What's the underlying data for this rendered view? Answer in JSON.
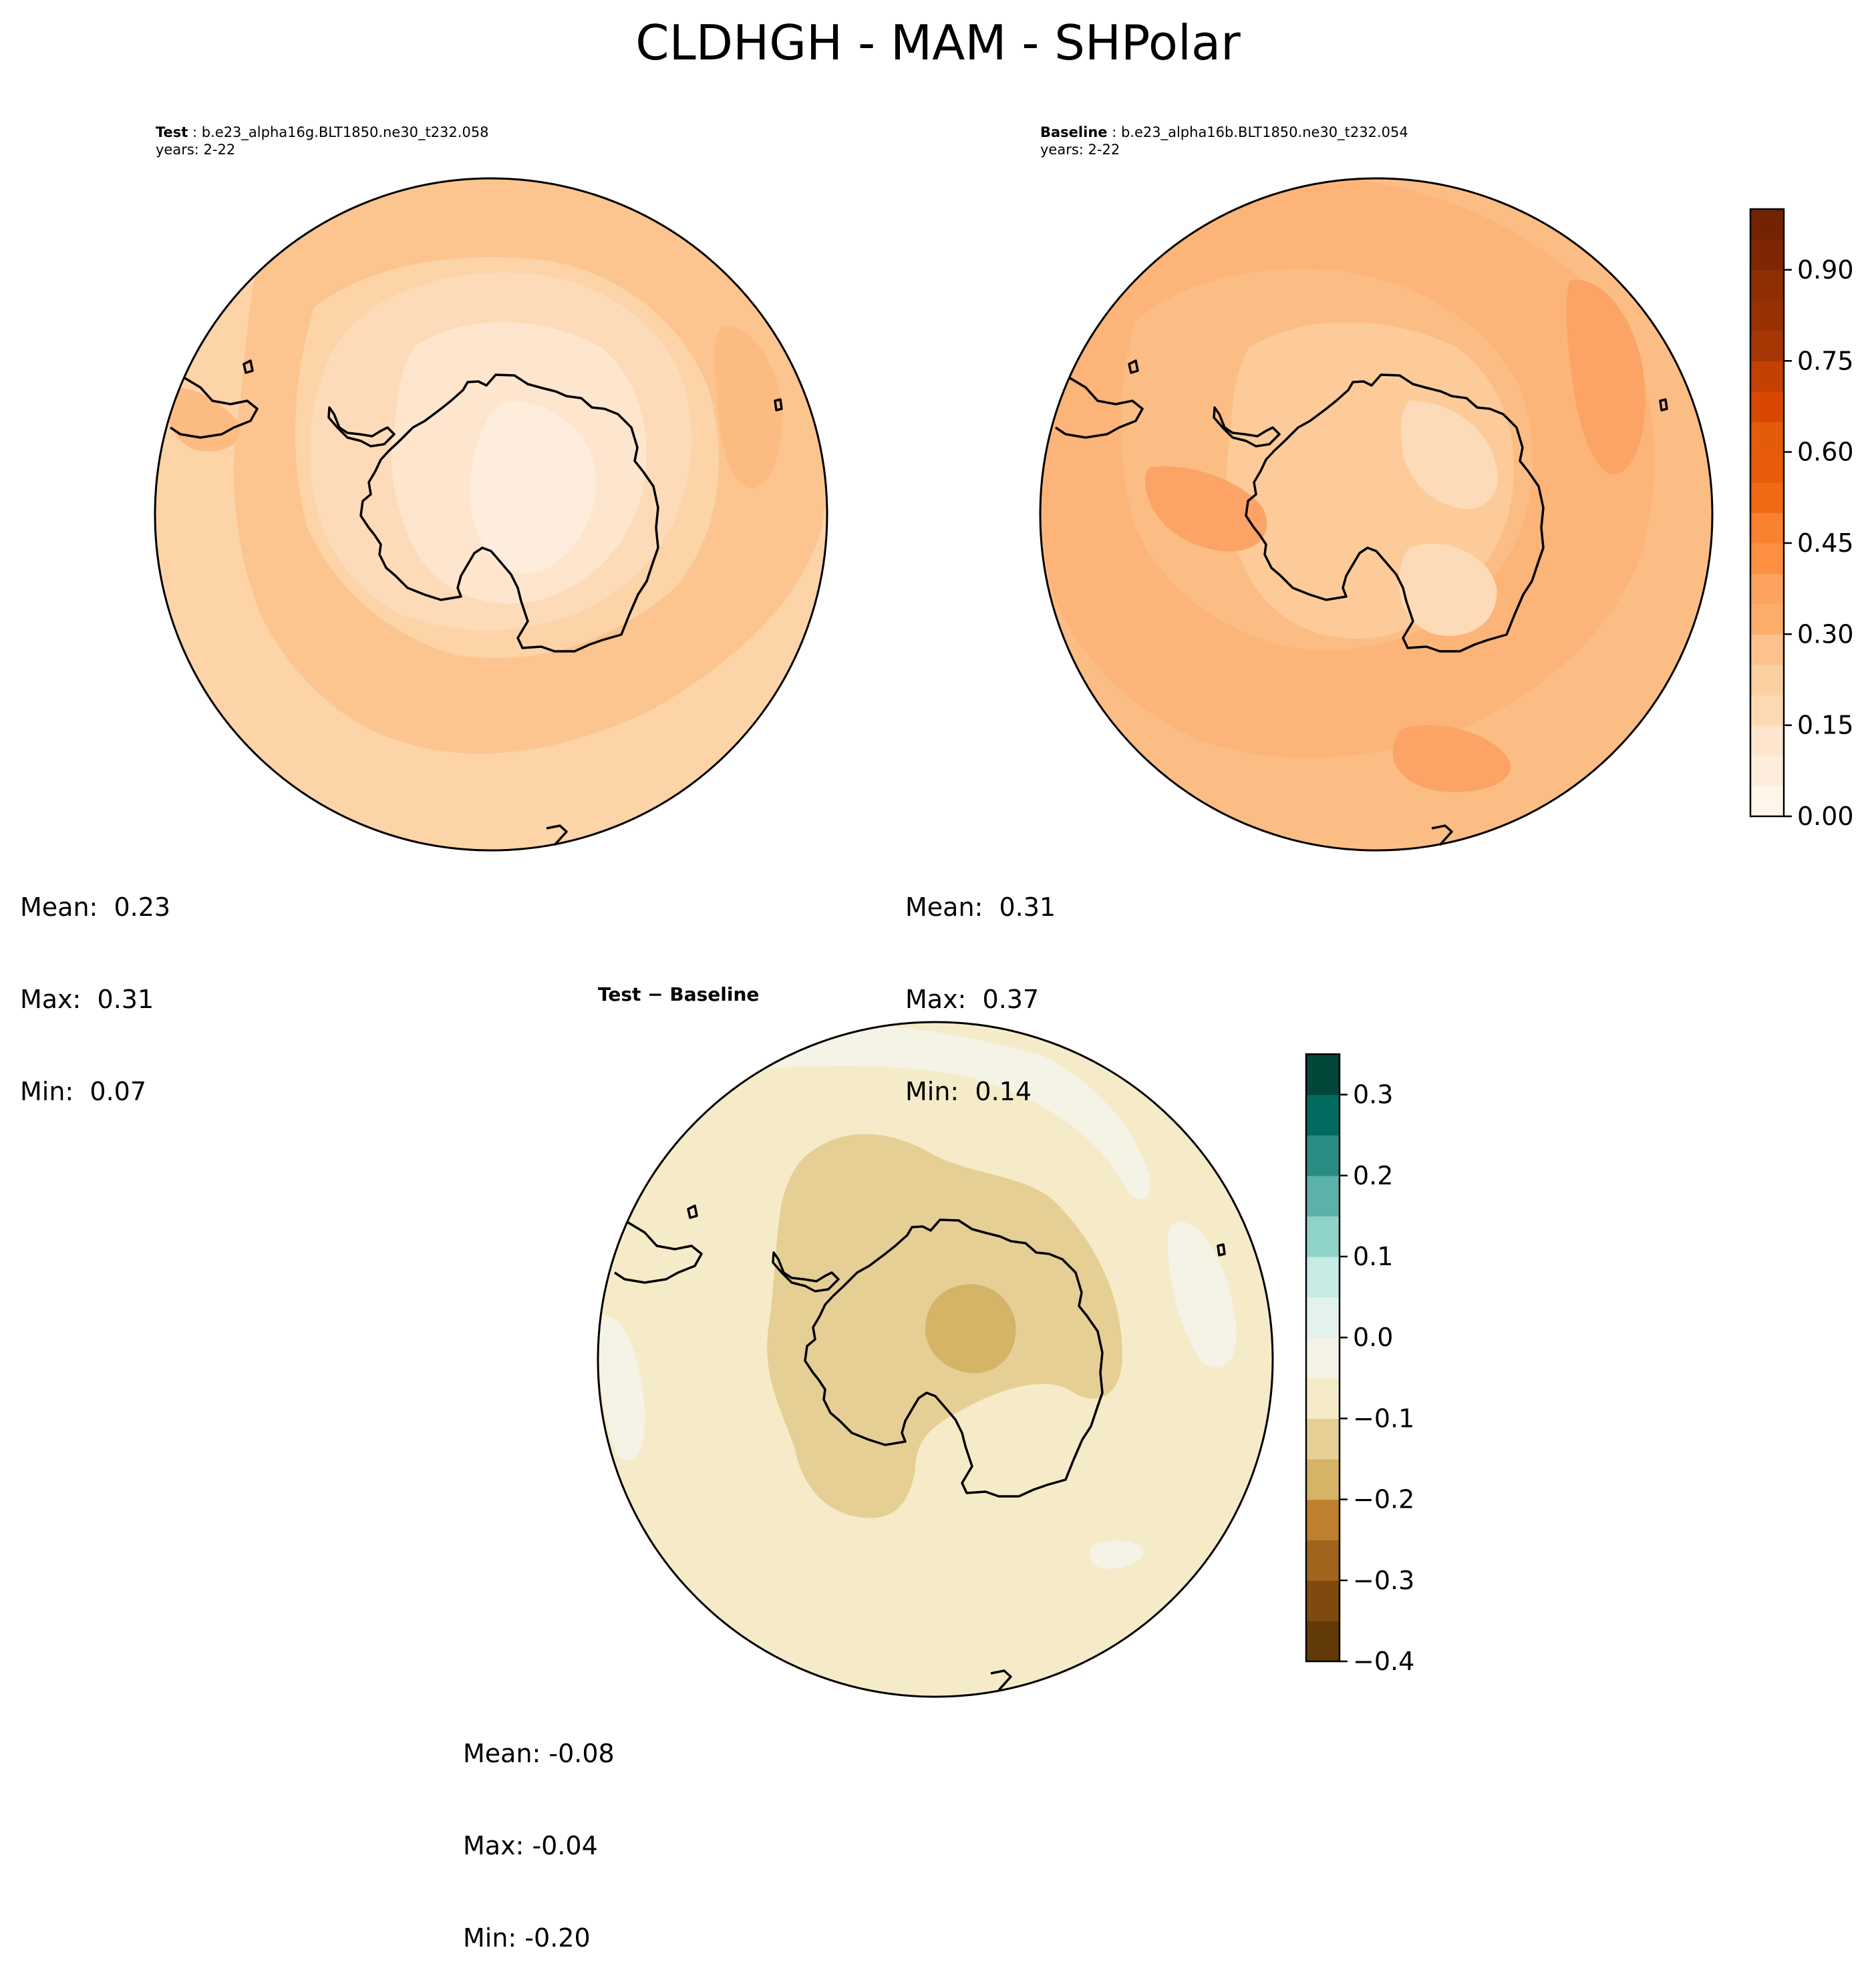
{
  "figure": {
    "title": "CLDHGH - MAM - SHPolar"
  },
  "panels": {
    "test": {
      "label": "Test",
      "case": "b.e23_alpha16g.BLT1850.ne30_t232.058",
      "years": "years: 2-22",
      "mean": "Mean:  0.23",
      "max": "Max:  0.31",
      "min": "Min:  0.07"
    },
    "baseline": {
      "label": "Baseline",
      "case": "b.e23_alpha16b.BLT1850.ne30_t232.054",
      "years": "years: 2-22",
      "mean": "Mean:  0.31",
      "max": "Max:  0.37",
      "min": "Min:  0.14"
    },
    "diff": {
      "title": "Test − Baseline",
      "mean": "Mean: -0.08",
      "max": "Max: -0.04",
      "min": "Min: -0.20"
    }
  },
  "chart_data": [
    {
      "type": "heatmap",
      "projection": "south polar stereographic",
      "panel": "test",
      "field": "CLDHGH",
      "season": "MAM",
      "region": "SHPolar",
      "stats": {
        "mean": 0.23,
        "max": 0.31,
        "min": 0.07
      },
      "colormap": "Oranges",
      "levels": [
        0.0,
        0.05,
        0.1,
        0.15,
        0.2,
        0.25,
        0.3,
        0.35,
        0.4,
        0.45,
        0.5,
        0.55,
        0.6,
        0.65,
        0.7,
        0.75,
        0.8,
        0.85,
        0.9,
        0.95,
        1.0
      ],
      "colorbar_ticks": [
        "0.00",
        "0.15",
        "0.30",
        "0.45",
        "0.60",
        "0.75",
        "0.90"
      ]
    },
    {
      "type": "heatmap",
      "projection": "south polar stereographic",
      "panel": "baseline",
      "field": "CLDHGH",
      "season": "MAM",
      "region": "SHPolar",
      "stats": {
        "mean": 0.31,
        "max": 0.37,
        "min": 0.14
      },
      "colormap": "Oranges",
      "levels": [
        0.0,
        0.05,
        0.1,
        0.15,
        0.2,
        0.25,
        0.3,
        0.35,
        0.4,
        0.45,
        0.5,
        0.55,
        0.6,
        0.65,
        0.7,
        0.75,
        0.8,
        0.85,
        0.9,
        0.95,
        1.0
      ],
      "colorbar_ticks": [
        "0.00",
        "0.15",
        "0.30",
        "0.45",
        "0.60",
        "0.75",
        "0.90"
      ]
    },
    {
      "type": "heatmap",
      "projection": "south polar stereographic",
      "panel": "difference",
      "field": "CLDHGH",
      "stats": {
        "mean": -0.08,
        "max": -0.04,
        "min": -0.2
      },
      "colormap": "BrBG",
      "levels": [
        -0.4,
        -0.35,
        -0.3,
        -0.25,
        -0.2,
        -0.15,
        -0.1,
        -0.05,
        0.0,
        0.05,
        0.1,
        0.15,
        0.2,
        0.25,
        0.3,
        0.35
      ],
      "colorbar_ticks": [
        "−0.4",
        "−0.3",
        "−0.2",
        "−0.1",
        "0.0",
        "0.1",
        "0.2",
        "0.3"
      ]
    }
  ],
  "colors": {
    "oranges": [
      "#fff5eb",
      "#feeddc",
      "#fee6ce",
      "#fdd9b4",
      "#fdd0a2",
      "#fdc28c",
      "#fdae6b",
      "#fda35f",
      "#fd9141",
      "#f8822f",
      "#f16913",
      "#e85b0b",
      "#e45b09",
      "#d94801",
      "#c44103",
      "#a63603",
      "#993103",
      "#8f2e03",
      "#7f2704",
      "#732204"
    ],
    "brbg": [
      "#623a08",
      "#7e4a0e",
      "#a0641c",
      "#bf812d",
      "#d5b367",
      "#e6cf95",
      "#f5ebc8",
      "#f5f2e6",
      "#e4f2ee",
      "#c7eae5",
      "#8fd3c8",
      "#5ab2a8",
      "#2a8d83",
      "#016b5f",
      "#01473a"
    ],
    "test_fill": "#fdd3a8",
    "baseline_fill": "#fcbd85",
    "diff_fill": "#f5ebc8"
  }
}
